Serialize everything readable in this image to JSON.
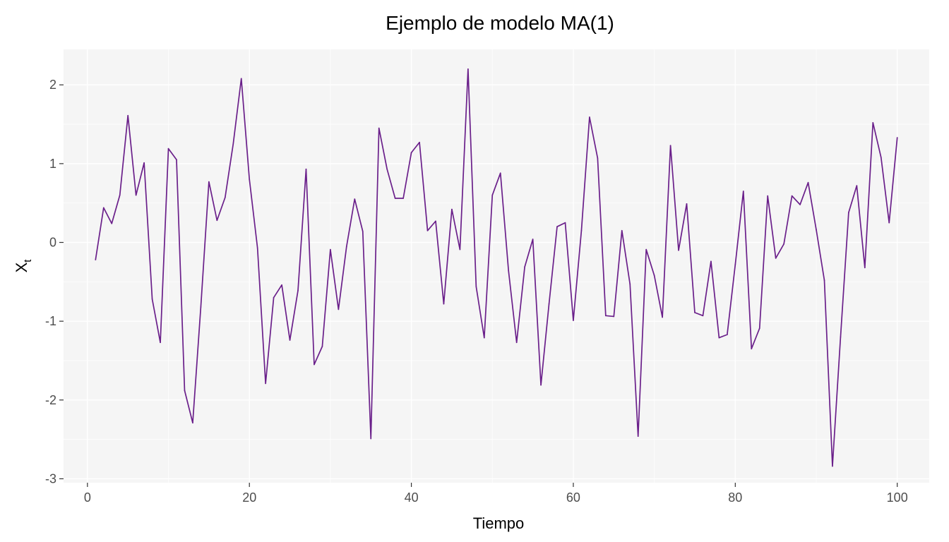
{
  "chart_data": {
    "type": "line",
    "title": "Ejemplo de modelo MA(1)",
    "xlabel": "Tiempo",
    "ylabel": "X",
    "ylabel_subscript": "t",
    "xlim": [
      -2.95,
      103.95
    ],
    "ylim": [
      -3.05,
      2.45
    ],
    "x_ticks": [
      0,
      20,
      40,
      60,
      80,
      100
    ],
    "y_ticks": [
      -3,
      -2,
      -1,
      0,
      1,
      2
    ],
    "x_tick_labels": [
      "0",
      "20",
      "40",
      "60",
      "80",
      "100"
    ],
    "y_tick_labels": [
      "-3",
      "-2",
      "-1",
      "0",
      "1",
      "2"
    ],
    "grid": true,
    "background": "#f5f5f5",
    "line_color": "#6a1f8a",
    "series": [
      {
        "x": [
          1,
          2,
          3,
          4,
          5,
          6,
          7,
          8,
          9,
          10,
          11,
          12,
          13,
          14,
          15,
          16,
          17,
          18,
          19,
          20,
          21,
          22,
          23,
          24,
          25,
          26,
          27,
          28,
          29,
          30,
          31,
          32,
          33,
          34,
          35,
          36,
          37,
          38,
          39,
          40,
          41,
          42,
          43,
          44,
          45,
          46,
          47,
          48,
          49,
          50,
          51,
          52,
          53,
          54,
          55,
          56,
          57,
          58,
          59,
          60,
          61,
          62,
          63,
          64,
          65,
          66,
          67,
          68,
          69,
          70,
          71,
          72,
          73,
          74,
          75,
          76,
          77,
          78,
          79,
          80,
          81,
          82,
          83,
          84,
          85,
          86,
          87,
          88,
          89,
          90,
          91,
          92,
          93,
          94,
          95,
          96,
          97,
          98,
          99,
          100
        ],
        "values": [
          -0.22,
          0.44,
          0.24,
          0.6,
          1.61,
          0.6,
          1.01,
          -0.72,
          -1.27,
          1.19,
          1.05,
          -1.88,
          -2.29,
          -0.82,
          0.77,
          0.28,
          0.57,
          1.25,
          2.08,
          0.8,
          -0.07,
          -1.79,
          -0.7,
          -0.54,
          -1.24,
          -0.61,
          0.93,
          -1.55,
          -1.32,
          -0.09,
          -0.85,
          -0.05,
          0.55,
          0.14,
          -2.49,
          1.45,
          0.93,
          0.56,
          0.56,
          1.14,
          1.27,
          0.15,
          0.27,
          -0.78,
          0.42,
          -0.09,
          2.2,
          -0.56,
          -1.21,
          0.6,
          0.88,
          -0.36,
          -1.27,
          -0.31,
          0.04,
          -1.81,
          -0.78,
          0.2,
          0.25,
          -0.99,
          0.15,
          1.59,
          1.07,
          -0.93,
          -0.94,
          0.15,
          -0.53,
          -2.46,
          -0.09,
          -0.42,
          -0.95,
          1.23,
          -0.1,
          0.49,
          -0.89,
          -0.93,
          -0.24,
          -1.21,
          -1.17,
          -0.28,
          0.65,
          -1.35,
          -1.09,
          0.59,
          -0.2,
          -0.02,
          0.59,
          0.48,
          0.76,
          0.16,
          -0.48,
          -2.84,
          -1.2,
          0.38,
          0.72,
          -0.32,
          1.52,
          1.08,
          0.25,
          1.33
        ]
      }
    ]
  }
}
